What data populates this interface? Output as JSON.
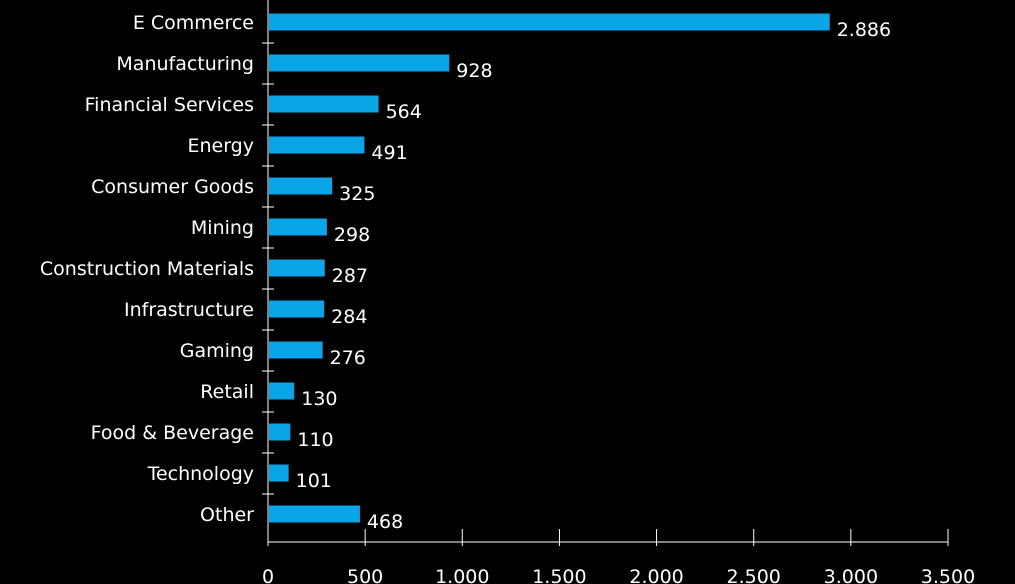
{
  "chart_data": {
    "type": "bar",
    "orientation": "horizontal",
    "categories": [
      "E Commerce",
      "Manufacturing",
      "Financial Services",
      "Energy",
      "Consumer Goods",
      "Mining",
      "Construction Materials",
      "Infrastructure",
      "Gaming",
      "Retail",
      "Food & Beverage",
      "Technology",
      "Other"
    ],
    "values": [
      2886,
      928,
      564,
      491,
      325,
      298,
      287,
      284,
      276,
      130,
      110,
      101,
      468
    ],
    "value_labels": [
      "2.886",
      "928",
      "564",
      "491",
      "325",
      "298",
      "287",
      "284",
      "276",
      "130",
      "110",
      "101",
      "468"
    ],
    "x_ticks": [
      0,
      500,
      1000,
      1500,
      2000,
      2500,
      3000,
      3500
    ],
    "x_tick_labels": [
      "0",
      "500",
      "1.000",
      "1.500",
      "2.000",
      "2.500",
      "3.000",
      "3.500"
    ],
    "xlim": [
      0,
      3500
    ],
    "title": "",
    "xlabel": "",
    "ylabel": "",
    "grid": false,
    "legend": "none",
    "colors": {
      "bar": "#0aa5e6",
      "background": "#000000",
      "text": "#ffffff",
      "axis": "#ffffff"
    }
  }
}
